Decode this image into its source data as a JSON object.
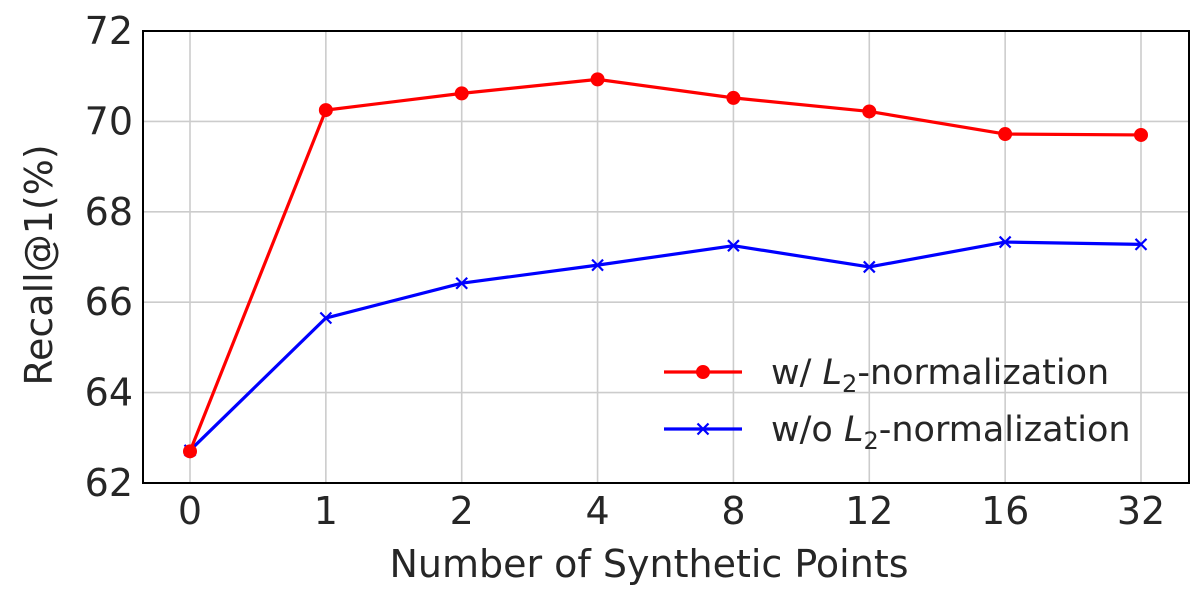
{
  "chart_data": {
    "type": "line",
    "title": "",
    "xlabel": "Number of Synthetic Points",
    "ylabel": "Recall@1(%)",
    "categories": [
      "0",
      "1",
      "2",
      "4",
      "8",
      "12",
      "16",
      "32"
    ],
    "ylim": [
      62,
      72
    ],
    "yticks": [
      "62",
      "64",
      "66",
      "68",
      "70",
      "72"
    ],
    "grid": true,
    "legend_position": "lower-right",
    "series": [
      {
        "name": "w/ L2-normalization",
        "legend": {
          "prefix": "w/ ",
          "symbol": "L",
          "subscript": "2",
          "suffix": "-normalization"
        },
        "color": "#ff0000",
        "marker": "circle",
        "values": [
          62.7,
          70.25,
          70.62,
          70.93,
          70.52,
          70.22,
          69.72,
          69.7
        ]
      },
      {
        "name": "w/o L2-normalization",
        "legend": {
          "prefix": "w/o ",
          "symbol": "L",
          "subscript": "2",
          "suffix": "-normalization"
        },
        "color": "#0000ff",
        "marker": "x",
        "values": [
          62.72,
          65.65,
          66.42,
          66.82,
          67.25,
          66.78,
          67.33,
          67.28
        ]
      }
    ]
  }
}
